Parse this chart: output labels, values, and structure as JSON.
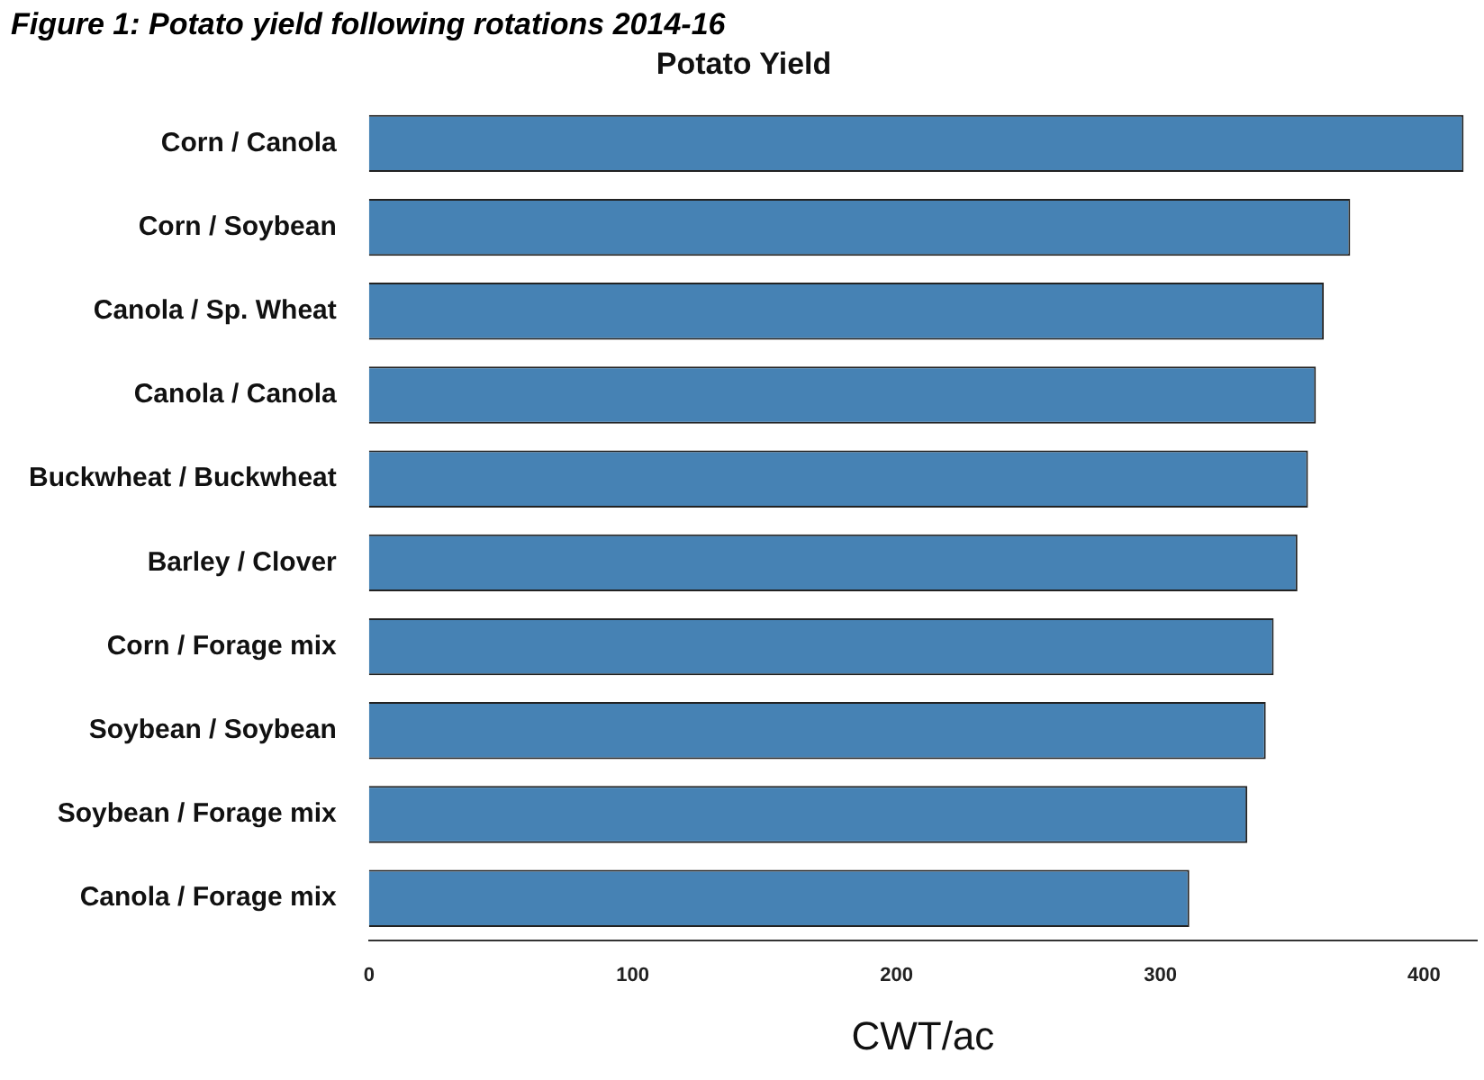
{
  "chart_data": {
    "type": "bar",
    "orientation": "horizontal",
    "title": "Potato Yield",
    "xlabel": "CWT/ac",
    "annotations": [
      "Figure 1: Potato yield following rotations 2014-16"
    ],
    "categories": [
      "Corn / Canola",
      "Corn / Soybean",
      "Canola / Sp. Wheat",
      "Canola / Canola",
      "Buckwheat / Buckwheat",
      "Barley / Clover",
      "Corn / Forage mix",
      "Soybean / Soybean",
      "Soybean / Forage mix",
      "Canola / Forage mix"
    ],
    "values": [
      415,
      372,
      362,
      359,
      356,
      352,
      343,
      340,
      333,
      311
    ],
    "color": "#4682b4",
    "xlim": [
      0,
      420
    ],
    "xticks": [
      0,
      100,
      200,
      300,
      400
    ],
    "grid": false,
    "legend": false
  }
}
